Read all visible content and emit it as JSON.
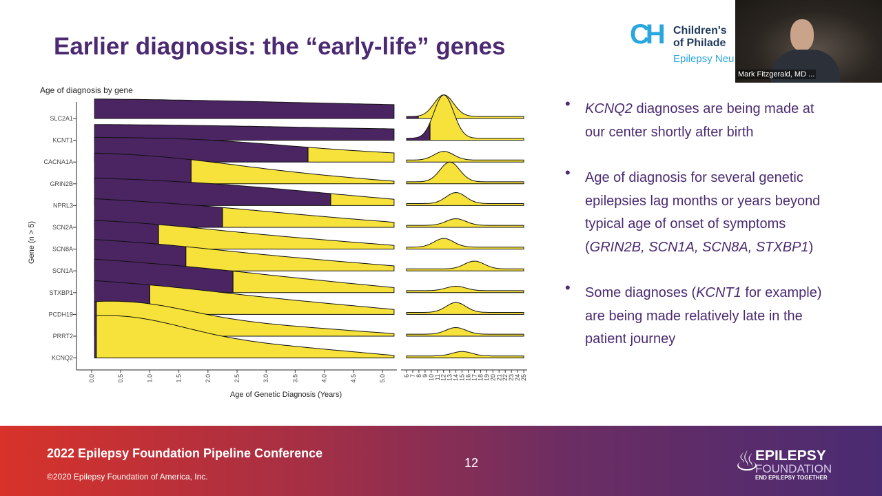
{
  "slide": {
    "title": "Earlier diagnosis: the “early-life” genes",
    "page_number": "12"
  },
  "logo": {
    "line1": "Children's",
    "line2": "of Philade",
    "line3": "Epilepsy Neu"
  },
  "video": {
    "participant_name": "Mark Fitzgerald, MD ..."
  },
  "bullets": [
    {
      "gene": "KCNQ2",
      "text": " diagnoses are being made at our center shortly after birth"
    },
    {
      "pre": "Age of diagnosis for several genetic epilepsies lag months or years beyond typical age of onset of symptoms (",
      "genes": "GRIN2B, SCN1A, SCN8A, STXBP1",
      "post": ")"
    },
    {
      "pre": "Some diagnoses (",
      "gene": "KCNT1",
      "post": " for example) are being made relatively late in the patient journey"
    }
  ],
  "footer": {
    "conference": "2022 Epilepsy Foundation Pipeline Conference",
    "copyright": "©2020 Epilepsy Foundation of America, Inc.",
    "brand1": "EPILEPSY",
    "brand2": "FOUNDATION",
    "tagline": "END EPILEPSY TOGETHER"
  },
  "chart_data": {
    "type": "ridgeline",
    "title": "Age of diagnosis by gene",
    "xlabel": "Age of Genetic Diagnosis (Years)",
    "ylabel": "Gene (n > 5)",
    "genes": [
      "SLC2A1",
      "KCNT1",
      "CACNA1A",
      "GRIN2B",
      "NPRL3",
      "SCN2A",
      "SCN8A",
      "SCN1A",
      "STXBP1",
      "PCDH19",
      "PRRT2",
      "KCNQ2"
    ],
    "fill_split_years": [
      7.9,
      9.8,
      3.72,
      1.71,
      4.11,
      2.25,
      1.15,
      1.62,
      2.43,
      1.0,
      0.08,
      0.08
    ],
    "x_ticks_left": [
      "0.0",
      "0.5",
      "1.0",
      "1.5",
      "2.0",
      "2.5",
      "3.0",
      "3.5",
      "4.0",
      "4.5",
      "5.0"
    ],
    "x_ticks_right": [
      "6",
      "7",
      "8",
      "9",
      "10",
      "11",
      "12",
      "13",
      "14",
      "15",
      "16",
      "17",
      "18",
      "19",
      "20",
      "21",
      "22",
      "23",
      "24",
      "25"
    ],
    "xlim_left": [
      0,
      5.2
    ],
    "xlim_right": [
      6,
      25
    ],
    "colors": {
      "before": "#4b2462",
      "after": "#f6e23a"
    }
  }
}
